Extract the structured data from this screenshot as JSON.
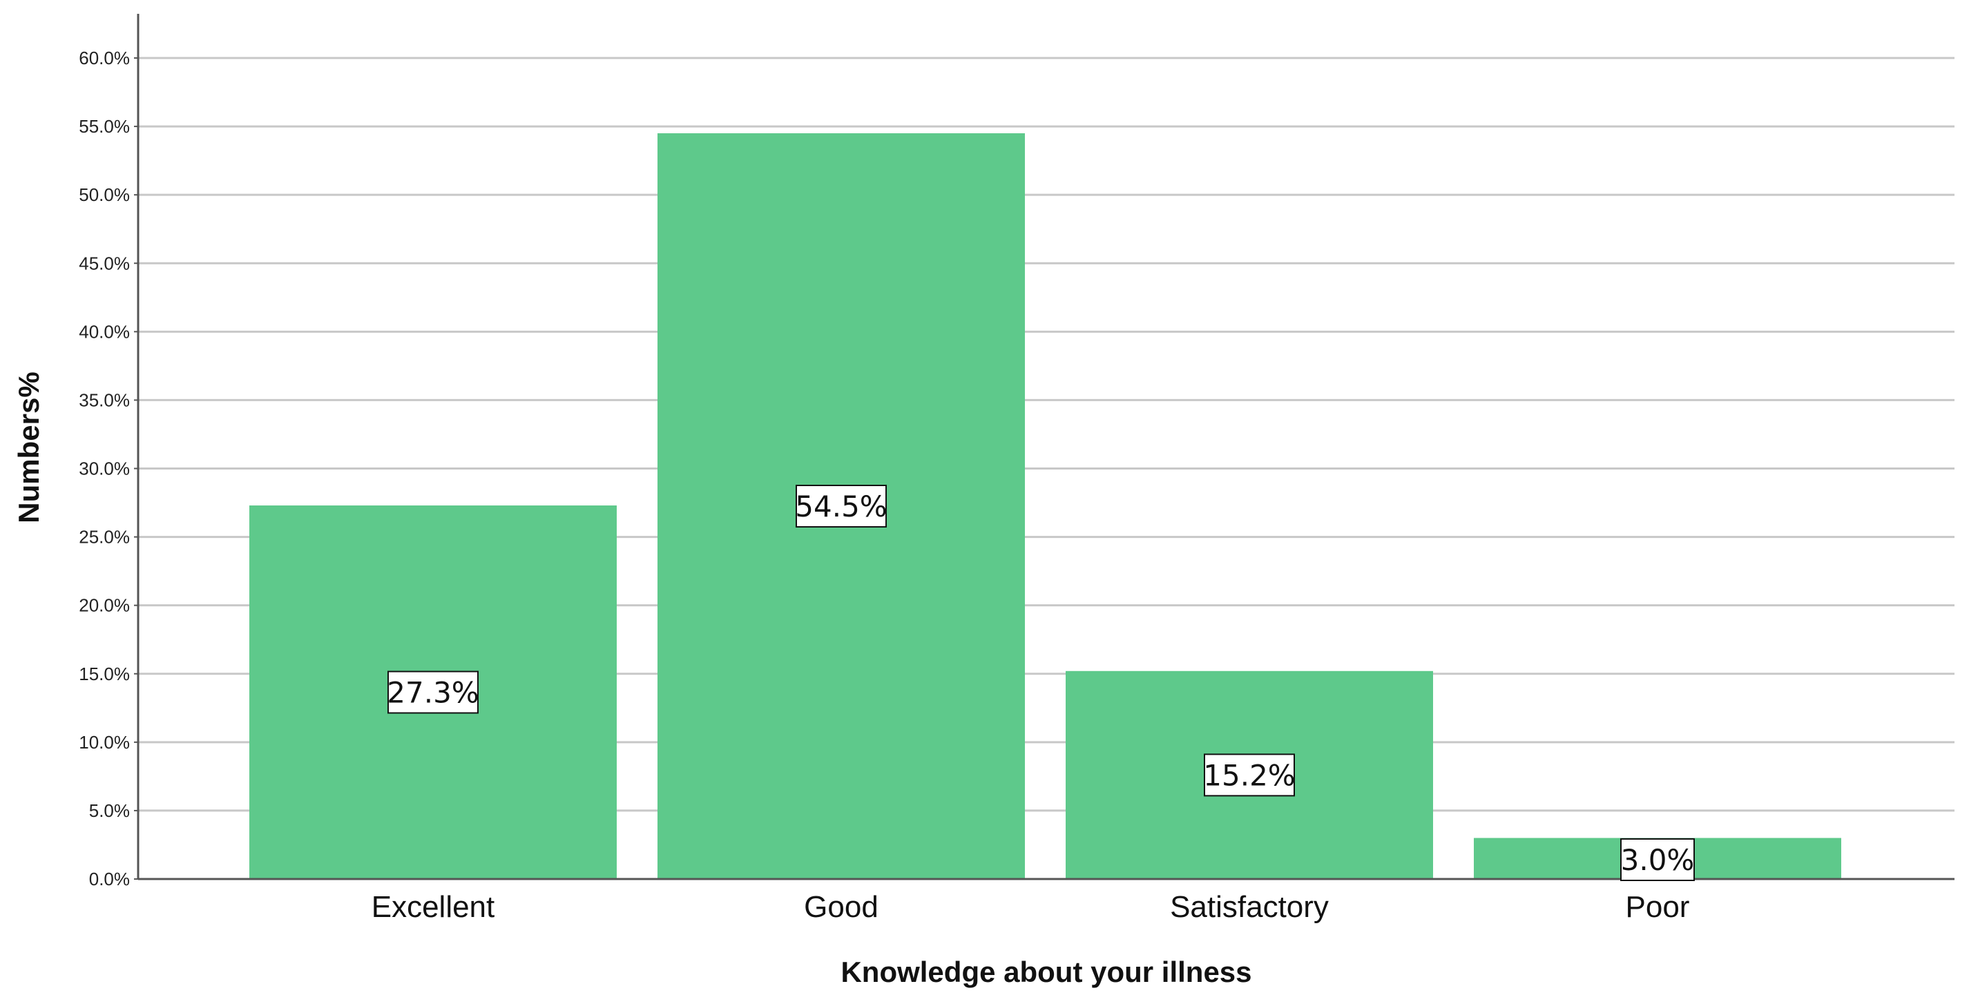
{
  "chart_data": {
    "type": "bar",
    "categories": [
      "Excellent",
      "Good",
      "Satisfactory",
      "Poor"
    ],
    "values": [
      27.3,
      54.5,
      15.2,
      3.0
    ],
    "data_labels": [
      "27.3%",
      "54.5%",
      "15.2%",
      "3.0%"
    ],
    "title": "",
    "xlabel": "Knowledge about your illness",
    "ylabel": "Numbers%",
    "ylim": [
      0,
      60
    ],
    "y_ticks": [
      0,
      5,
      10,
      15,
      20,
      25,
      30,
      35,
      40,
      45,
      50,
      55,
      60
    ],
    "y_tick_labels": [
      "0.0%",
      "5.0%",
      "10.0%",
      "15.0%",
      "20.0%",
      "25.0%",
      "30.0%",
      "35.0%",
      "40.0%",
      "45.0%",
      "50.0%",
      "55.0%",
      "60.0%"
    ],
    "grid": true,
    "bar_color": "#5ec98b",
    "gridline_color": "#c8c8c8",
    "axis_color": "#555555"
  }
}
